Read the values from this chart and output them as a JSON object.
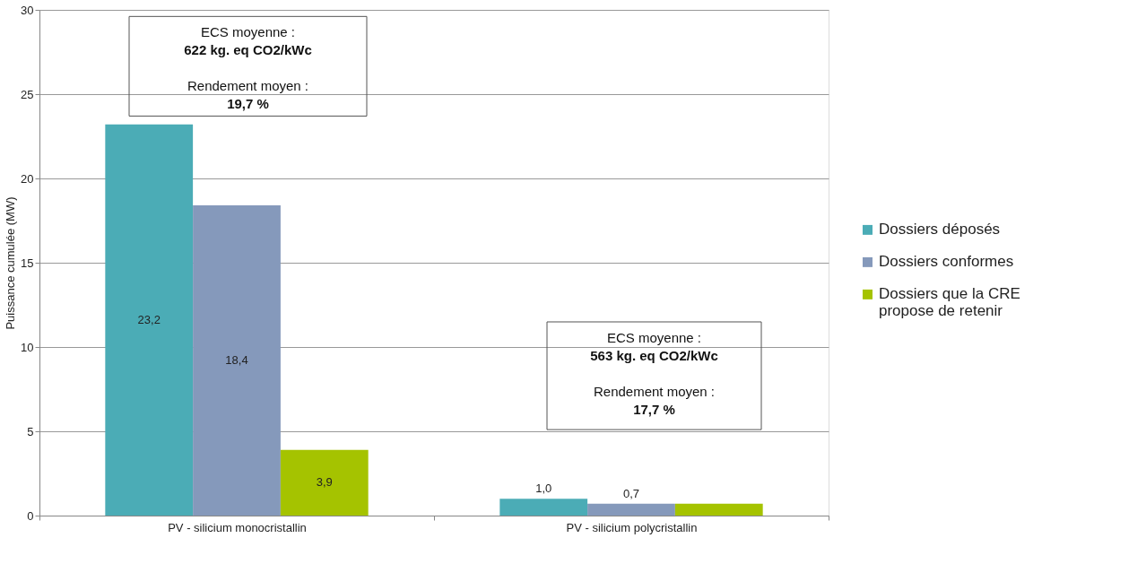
{
  "chart_data": {
    "type": "bar",
    "ylabel": "Puissance cumulée (MW)",
    "categories": [
      "PV - silicium monocristallin",
      "PV - silicium polycristallin"
    ],
    "series": [
      {
        "name": "Dossiers déposés",
        "color": "#4bacb6",
        "values": [
          23.2,
          1.0
        ],
        "value_labels": [
          "23,2",
          "1,0"
        ]
      },
      {
        "name": "Dossiers conformes",
        "color": "#8599bb",
        "values": [
          18.4,
          0.7
        ],
        "value_labels": [
          "18,4",
          "0,7"
        ]
      },
      {
        "name": "Dossiers que la CRE propose de retenir",
        "color": "#a5c300",
        "values": [
          3.9,
          0.7
        ],
        "value_labels": [
          "3,9",
          null
        ]
      }
    ],
    "ylim": [
      0,
      30
    ],
    "yticks": [
      0,
      5,
      10,
      15,
      20,
      25,
      30
    ],
    "grid": "y",
    "legend": "right",
    "annotations": [
      "ECS moyenne :\n622 kg. eq CO2/kWc\n\nRendement moyen :\n19,7 %",
      "ECS moyenne :\n563 kg. eq CO2/kWc\n\nRendement moyen :\n17,7 %"
    ]
  }
}
